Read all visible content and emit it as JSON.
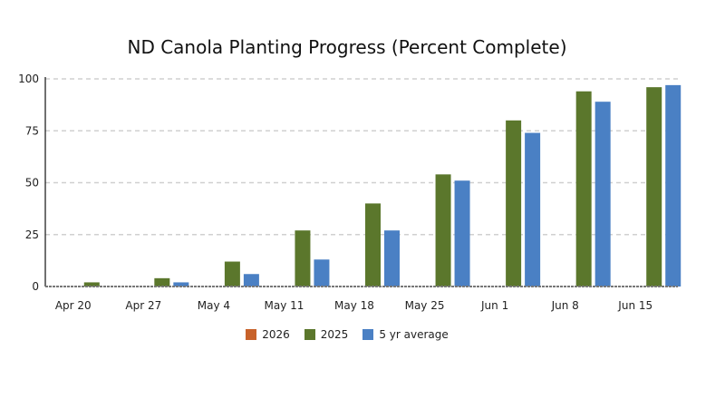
{
  "chart_data": {
    "type": "bar",
    "title": "ND Canola Planting Progress (Percent Complete)",
    "xlabel": "",
    "ylabel": "",
    "ylim": [
      0,
      100
    ],
    "yticks": [
      "0",
      "25",
      "50",
      "75",
      "100"
    ],
    "grid": true,
    "legend_position": "bottom",
    "categories": [
      "Apr 20",
      "Apr 27",
      "May 4",
      "May 11",
      "May 18",
      "May 25",
      "Jun 1",
      "Jun 8",
      "Jun 15"
    ],
    "series": [
      {
        "name": "2026",
        "color": "#c8622a",
        "values": [
          null,
          null,
          null,
          null,
          null,
          null,
          null,
          null,
          null
        ]
      },
      {
        "name": "2025",
        "color": "#5b772c",
        "values": [
          2,
          4,
          12,
          27,
          40,
          54,
          80,
          94,
          96
        ]
      },
      {
        "name": "5 yr average",
        "color": "#4a80c4",
        "values": [
          0,
          2,
          6,
          13,
          27,
          51,
          74,
          89,
          97
        ]
      }
    ]
  }
}
